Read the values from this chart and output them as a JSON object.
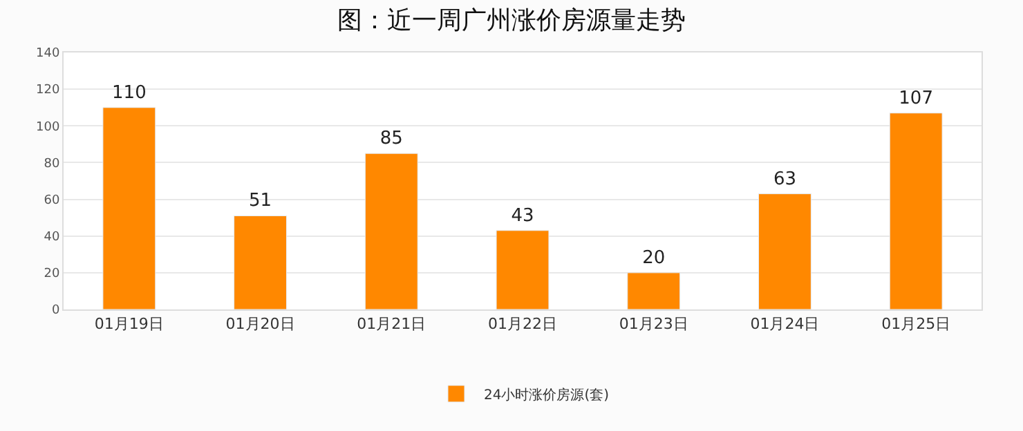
{
  "chart_data": {
    "type": "bar",
    "title": "图：近一周广州涨价房源量走势",
    "categories": [
      "01月19日",
      "01月20日",
      "01月21日",
      "01月22日",
      "01月23日",
      "01月24日",
      "01月25日"
    ],
    "series": [
      {
        "name": "24小时涨价房源(套)",
        "color": "#ff8800",
        "values": [
          110,
          51,
          85,
          43,
          20,
          63,
          107
        ]
      }
    ],
    "ylim": [
      0,
      140
    ],
    "yticks": [
      0,
      20,
      40,
      60,
      80,
      100,
      120,
      140
    ],
    "grid": "y",
    "legend": "bottom",
    "data_labels": true
  }
}
